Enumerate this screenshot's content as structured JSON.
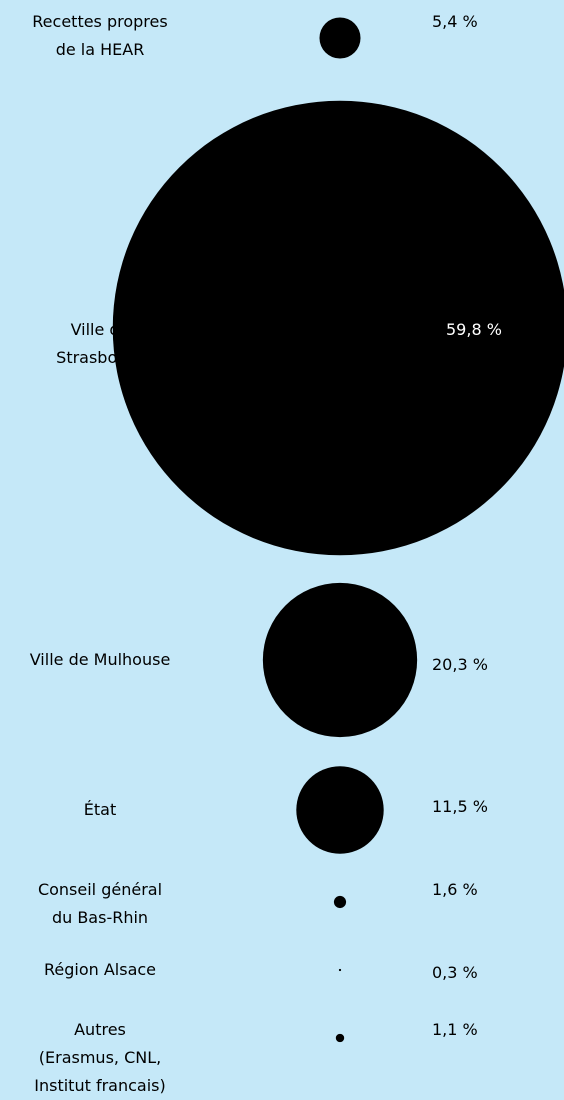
{
  "chart_data": {
    "type": "bubble",
    "categories": [
      "Recettes propres\nde la HEAR",
      "Ville de\nStrasbourg",
      "Ville de Mulhouse",
      "État",
      "Conseil général\ndu Bas-Rhin",
      "Région Alsace",
      "Autres\n(Erasmus, CNL,\nInstitut francais)"
    ],
    "values": [
      5.4,
      59.8,
      20.3,
      11.5,
      1.6,
      0.3,
      1.1
    ],
    "value_labels": [
      "5,4 %",
      "59,8 %",
      "20,3 %",
      "11,5 %",
      "1,6 %",
      "0,3 %",
      "1,1 %"
    ],
    "color": "#000000"
  }
}
